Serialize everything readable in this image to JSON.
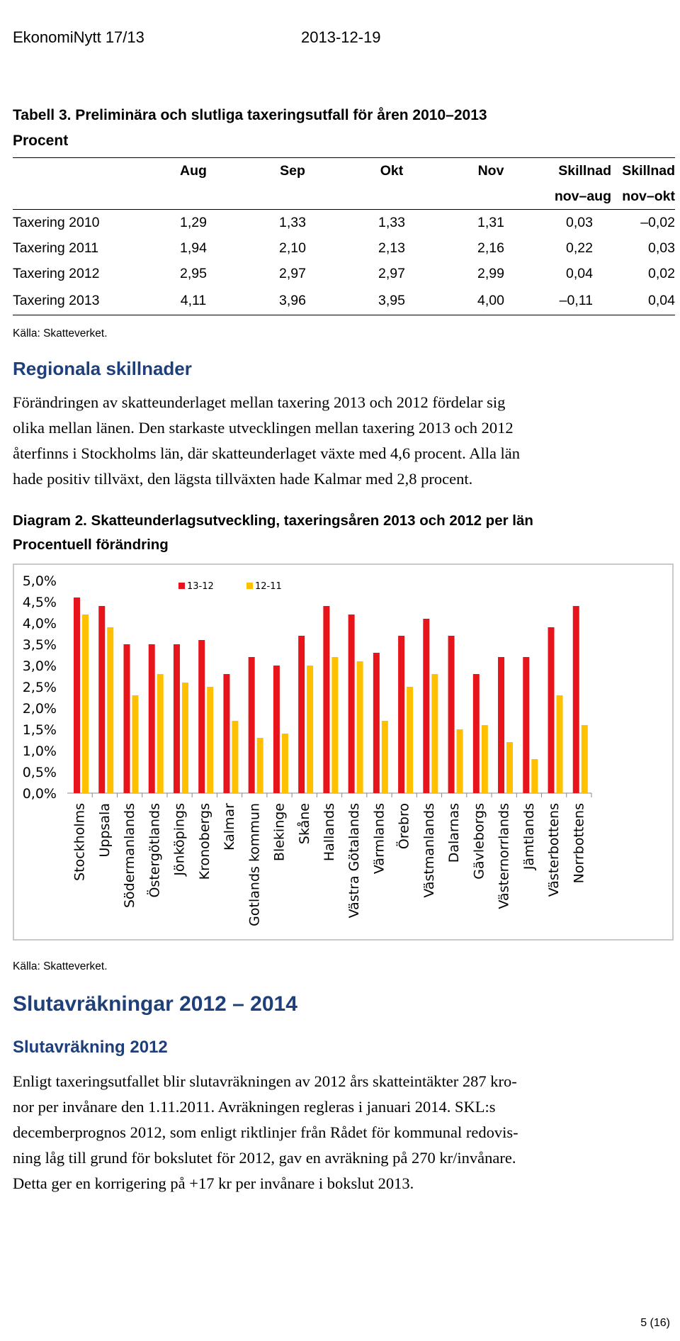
{
  "header": {
    "publication": "EkonomiNytt 17/13",
    "date": "2013-12-19"
  },
  "table": {
    "caption_line1": "Tabell 3. Preliminära och slutliga taxeringsutfall för åren 2010–2013",
    "caption_line2": "Procent",
    "columns": [
      "Aug",
      "Sep",
      "Okt",
      "Nov",
      "Skillnad",
      "Skillnad"
    ],
    "subcolumns": [
      "",
      "",
      "",
      "",
      "nov–aug",
      "nov–okt"
    ],
    "rows": [
      {
        "label": "Taxering 2010",
        "values": [
          "1,29",
          "1,33",
          "1,33",
          "1,31",
          "0,03",
          "–0,02"
        ]
      },
      {
        "label": "Taxering 2011",
        "values": [
          "1,94",
          "2,10",
          "2,13",
          "2,16",
          "0,22",
          "0,03"
        ]
      },
      {
        "label": "Taxering 2012",
        "values": [
          "2,95",
          "2,97",
          "2,97",
          "2,99",
          "0,04",
          "0,02"
        ]
      },
      {
        "label": "Taxering 2013",
        "values": [
          "4,11",
          "3,96",
          "3,95",
          "4,00",
          "–0,11",
          "0,04"
        ]
      }
    ],
    "source": "Källa: Skatteverket."
  },
  "section1": {
    "heading": "Regionala skillnader",
    "lines": [
      "Förändringen av skatteunderlaget mellan taxering 2013 och 2012 fördelar sig",
      "olika mellan länen. Den starkaste utvecklingen mellan taxering 2013 och 2012",
      "återfinns i Stockholms län, där skatteunderlaget växte med 4,6 procent. Alla län",
      "hade positiv tillväxt, den lägsta tillväxten hade Kalmar med 2,8 procent."
    ]
  },
  "diagram": {
    "caption_line1": "Diagram 2. Skatteunderlagsutveckling, taxeringsåren 2013 och 2012 per län",
    "caption_line2": "Procentuell förändring",
    "source": "Källa: Skatteverket."
  },
  "chart_data": {
    "type": "bar",
    "categories": [
      "Stockholms",
      "Uppsala",
      "Södermanlands",
      "Östergötlands",
      "Jönköpings",
      "Kronobergs",
      "Kalmar",
      "Gotlands kommun",
      "Blekinge",
      "Skåne",
      "Hallands",
      "Västra Götalands",
      "Värmlands",
      "Örebro",
      "Västmanlands",
      "Dalarnas",
      "Gävleborgs",
      "Västernorrlands",
      "Jämtlands",
      "Västerbottens",
      "Norrbottens"
    ],
    "series": [
      {
        "name": "13-12",
        "color": "#e8141b",
        "values": [
          4.6,
          4.4,
          3.5,
          3.5,
          3.5,
          3.6,
          2.8,
          3.2,
          3.0,
          3.7,
          4.4,
          4.2,
          3.3,
          3.7,
          4.1,
          3.7,
          2.8,
          3.2,
          3.2,
          3.9,
          4.4
        ]
      },
      {
        "name": "12-11",
        "color": "#ffc000",
        "values": [
          4.2,
          3.9,
          2.3,
          2.8,
          2.6,
          2.5,
          1.7,
          1.3,
          1.4,
          3.0,
          3.2,
          3.1,
          1.7,
          2.5,
          2.8,
          1.5,
          1.6,
          1.2,
          0.8,
          2.3,
          1.6
        ]
      }
    ],
    "y_ticks": [
      "0,0%",
      "0,5%",
      "1,0%",
      "1,5%",
      "2,0%",
      "2,5%",
      "3,0%",
      "3,5%",
      "4,0%",
      "4,5%",
      "5,0%"
    ],
    "ylim": [
      0,
      5
    ],
    "grid": false,
    "legend_position": "top"
  },
  "section2": {
    "heading": "Slutavräkningar 2012 – 2014",
    "subheading": "Slutavräkning 2012",
    "lines": [
      "Enligt taxeringsutfallet blir slutavräkningen av 2012 års skatteintäkter 287 kro-",
      "nor per invånare den 1.11.2011. Avräkningen regleras i januari 2014. SKL:s",
      "decemberprognos 2012, som enligt riktlinjer från Rådet för kommunal redovis-",
      "ning låg till grund för bokslutet för 2012, gav en avräkning på 270 kr/invånare.",
      "Detta ger en korrigering på +17 kr per invånare i bokslut 2013."
    ]
  },
  "page_number": "5 (16)"
}
